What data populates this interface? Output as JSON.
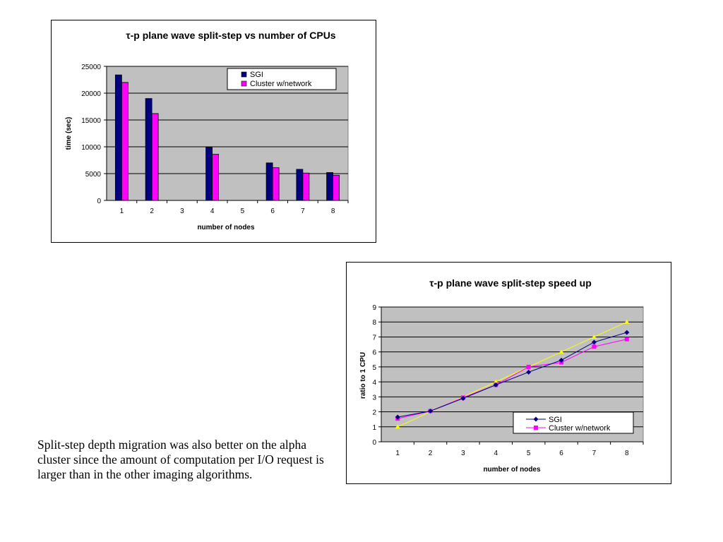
{
  "chart_data": [
    {
      "type": "bar",
      "title": "τ-p plane wave split-step vs number of CPUs",
      "xlabel": "number of nodes",
      "ylabel": "time (sec)",
      "categories": [
        "1",
        "2",
        "3",
        "4",
        "5",
        "6",
        "7",
        "8"
      ],
      "ylim": [
        0,
        25000
      ],
      "yticks": [
        0,
        5000,
        10000,
        15000,
        20000,
        25000
      ],
      "grid": true,
      "legend_position": "top-right",
      "series": [
        {
          "name": "SGI",
          "color": "#000080",
          "values": [
            23400,
            19000,
            null,
            9900,
            null,
            7000,
            5800,
            5200
          ]
        },
        {
          "name": "Cluster w/network",
          "color": "#ff00ff",
          "values": [
            22000,
            16200,
            null,
            8600,
            null,
            6100,
            5100,
            4700
          ]
        }
      ]
    },
    {
      "type": "line",
      "title": "τ-p plane wave split-step speed up",
      "xlabel": "number of nodes",
      "ylabel": "ratio to 1 CPU",
      "categories": [
        "1",
        "2",
        "3",
        "4",
        "5",
        "6",
        "7",
        "8"
      ],
      "ylim": [
        0,
        9
      ],
      "yticks": [
        0,
        1,
        2,
        3,
        4,
        5,
        6,
        7,
        8,
        9
      ],
      "grid": true,
      "legend_position": "bottom-right",
      "series": [
        {
          "name": "SGI",
          "color": "#000080",
          "marker": "diamond",
          "values": [
            1.65,
            2.05,
            2.9,
            3.8,
            4.65,
            5.45,
            6.65,
            7.3
          ]
        },
        {
          "name": "Cluster w/network",
          "color": "#ff00ff",
          "marker": "square",
          "values": [
            1.55,
            2.05,
            2.95,
            3.8,
            5.0,
            5.3,
            6.35,
            6.85
          ]
        },
        {
          "name": "",
          "color": "#ffff00",
          "marker": "triangle",
          "values": [
            1,
            2,
            3,
            4,
            5,
            6,
            7,
            8
          ]
        }
      ]
    }
  ],
  "caption": "Split-step depth migration was also better on the alpha cluster since the amount of computation per I/O request is larger than in the other imaging algorithms."
}
